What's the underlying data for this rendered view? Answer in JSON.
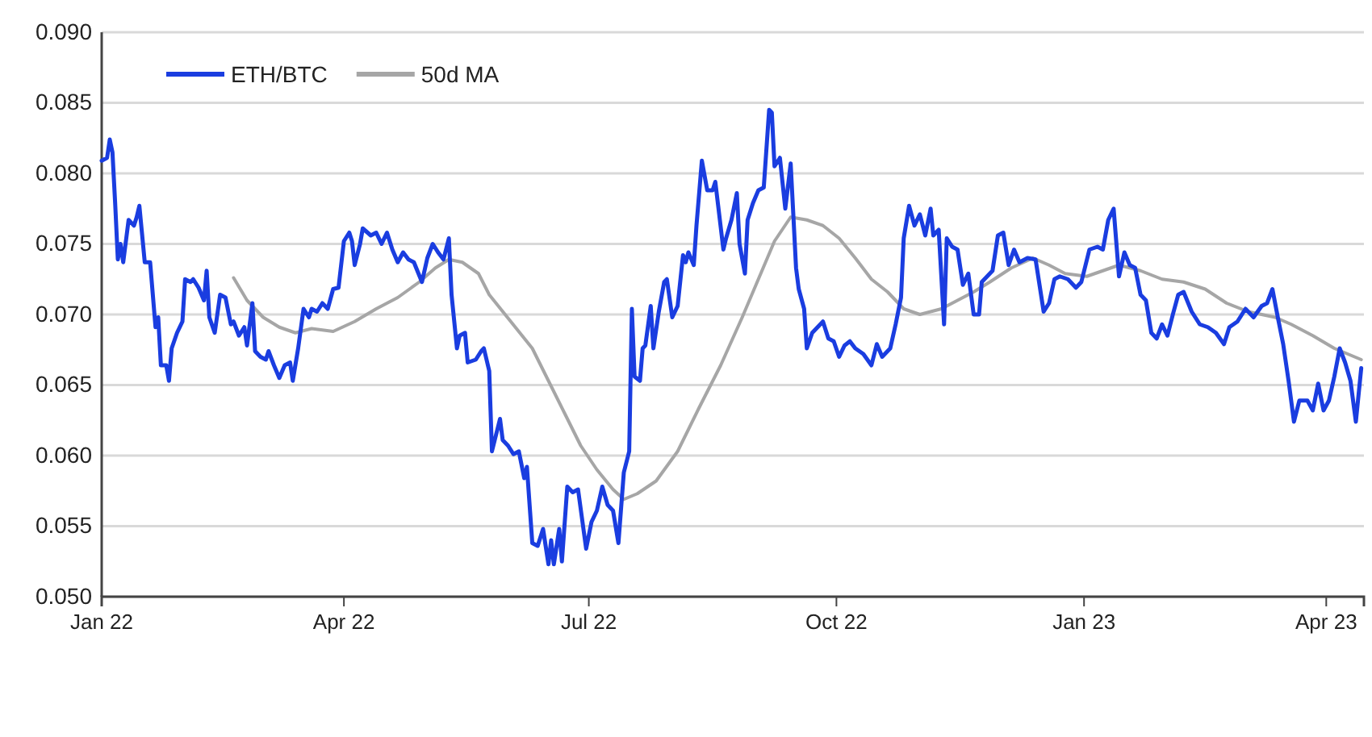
{
  "chart_data": {
    "type": "line",
    "xlim": [
      "2022-01-01",
      "2023-04-15"
    ],
    "xticks": [
      {
        "value": "2022-01-01",
        "label": "Jan 22"
      },
      {
        "value": "2022-04-01",
        "label": "Apr 22"
      },
      {
        "value": "2022-07-01",
        "label": "Jul 22"
      },
      {
        "value": "2022-10-01",
        "label": "Oct 22"
      },
      {
        "value": "2023-01-01",
        "label": "Jan 23"
      },
      {
        "value": "2023-04-01",
        "label": "Apr 23"
      }
    ],
    "ylim": [
      0.05,
      0.09
    ],
    "yticks": [
      {
        "value": 0.05,
        "label": "0.050"
      },
      {
        "value": 0.055,
        "label": "0.055"
      },
      {
        "value": 0.06,
        "label": "0.060"
      },
      {
        "value": 0.065,
        "label": "0.065"
      },
      {
        "value": 0.07,
        "label": "0.070"
      },
      {
        "value": 0.075,
        "label": "0.075"
      },
      {
        "value": 0.08,
        "label": "0.080"
      },
      {
        "value": 0.085,
        "label": "0.085"
      },
      {
        "value": 0.09,
        "label": "0.090"
      }
    ],
    "grid": "y",
    "legend": "top left",
    "series": [
      {
        "name": "ETH/BTC",
        "color": "#1a3de0",
        "x": [
          "2022-01-01",
          "2022-01-03",
          "2022-01-04",
          "2022-01-05",
          "2022-01-06",
          "2022-01-07",
          "2022-01-08",
          "2022-01-09",
          "2022-01-11",
          "2022-01-13",
          "2022-01-14",
          "2022-01-15",
          "2022-01-17",
          "2022-01-19",
          "2022-01-21",
          "2022-01-22",
          "2022-01-23",
          "2022-01-25",
          "2022-01-26",
          "2022-01-27",
          "2022-01-29",
          "2022-01-31",
          "2022-02-01",
          "2022-02-03",
          "2022-02-04",
          "2022-02-06",
          "2022-02-08",
          "2022-02-09",
          "2022-02-10",
          "2022-02-12",
          "2022-02-14",
          "2022-02-16",
          "2022-02-18",
          "2022-02-19",
          "2022-02-21",
          "2022-02-23",
          "2022-02-24",
          "2022-02-26",
          "2022-02-27",
          "2022-03-01",
          "2022-03-03",
          "2022-03-04",
          "2022-03-06",
          "2022-03-08",
          "2022-03-10",
          "2022-03-12",
          "2022-03-13",
          "2022-03-15",
          "2022-03-17",
          "2022-03-19",
          "2022-03-20",
          "2022-03-22",
          "2022-03-24",
          "2022-03-26",
          "2022-03-28",
          "2022-03-30",
          "2022-04-01",
          "2022-04-03",
          "2022-04-04",
          "2022-04-05",
          "2022-04-07",
          "2022-04-08",
          "2022-04-11",
          "2022-04-13",
          "2022-04-15",
          "2022-04-17",
          "2022-04-19",
          "2022-04-21",
          "2022-04-23",
          "2022-04-25",
          "2022-04-27",
          "2022-04-30",
          "2022-05-02",
          "2022-05-04",
          "2022-05-06",
          "2022-05-08",
          "2022-05-10",
          "2022-05-11",
          "2022-05-13",
          "2022-05-14",
          "2022-05-16",
          "2022-05-17",
          "2022-05-20",
          "2022-05-22",
          "2022-05-23",
          "2022-05-25",
          "2022-05-26",
          "2022-05-29",
          "2022-05-30",
          "2022-06-01",
          "2022-06-03",
          "2022-06-05",
          "2022-06-07",
          "2022-06-08",
          "2022-06-10",
          "2022-06-12",
          "2022-06-14",
          "2022-06-16",
          "2022-06-17",
          "2022-06-18",
          "2022-06-20",
          "2022-06-21",
          "2022-06-23",
          "2022-06-25",
          "2022-06-27",
          "2022-06-30",
          "2022-07-02",
          "2022-07-04",
          "2022-07-06",
          "2022-07-08",
          "2022-07-10",
          "2022-07-12",
          "2022-07-14",
          "2022-07-16",
          "2022-07-17",
          "2022-07-18",
          "2022-07-20",
          "2022-07-21",
          "2022-07-22",
          "2022-07-24",
          "2022-07-25",
          "2022-07-27",
          "2022-07-29",
          "2022-07-30",
          "2022-08-01",
          "2022-08-03",
          "2022-08-05",
          "2022-08-06",
          "2022-08-07",
          "2022-08-09",
          "2022-08-10",
          "2022-08-12",
          "2022-08-14",
          "2022-08-16",
          "2022-08-17",
          "2022-08-20",
          "2022-08-21",
          "2022-08-23",
          "2022-08-25",
          "2022-08-26",
          "2022-08-28",
          "2022-08-29",
          "2022-08-31",
          "2022-09-02",
          "2022-09-04",
          "2022-09-06",
          "2022-09-07",
          "2022-09-08",
          "2022-09-10",
          "2022-09-12",
          "2022-09-14",
          "2022-09-16",
          "2022-09-17",
          "2022-09-19",
          "2022-09-20",
          "2022-09-22",
          "2022-09-24",
          "2022-09-26",
          "2022-09-28",
          "2022-09-30",
          "2022-10-02",
          "2022-10-04",
          "2022-10-06",
          "2022-10-08",
          "2022-10-11",
          "2022-10-14",
          "2022-10-16",
          "2022-10-18",
          "2022-10-21",
          "2022-10-23",
          "2022-10-25",
          "2022-10-26",
          "2022-10-28",
          "2022-10-30",
          "2022-11-01",
          "2022-11-03",
          "2022-11-05",
          "2022-11-06",
          "2022-11-08",
          "2022-11-10",
          "2022-11-11",
          "2022-11-13",
          "2022-11-15",
          "2022-11-17",
          "2022-11-19",
          "2022-11-21",
          "2022-11-23",
          "2022-11-24",
          "2022-11-26",
          "2022-11-28",
          "2022-11-30",
          "2022-12-02",
          "2022-12-04",
          "2022-12-06",
          "2022-12-08",
          "2022-12-11",
          "2022-12-14",
          "2022-12-17",
          "2022-12-19",
          "2022-12-21",
          "2022-12-23",
          "2022-12-26",
          "2022-12-29",
          "2022-12-31",
          "2023-01-03",
          "2023-01-06",
          "2023-01-08",
          "2023-01-10",
          "2023-01-12",
          "2023-01-14",
          "2023-01-16",
          "2023-01-18",
          "2023-01-20",
          "2023-01-22",
          "2023-01-24",
          "2023-01-26",
          "2023-01-28",
          "2023-01-30",
          "2023-02-01",
          "2023-02-03",
          "2023-02-05",
          "2023-02-07",
          "2023-02-10",
          "2023-02-13",
          "2023-02-16",
          "2023-02-19",
          "2023-02-22",
          "2023-02-24",
          "2023-02-27",
          "2023-03-02",
          "2023-03-05",
          "2023-03-08",
          "2023-03-10",
          "2023-03-12",
          "2023-03-14",
          "2023-03-16",
          "2023-03-18",
          "2023-03-20",
          "2023-03-22",
          "2023-03-25",
          "2023-03-27",
          "2023-03-29",
          "2023-03-31",
          "2023-04-02",
          "2023-04-04",
          "2023-04-06",
          "2023-04-08",
          "2023-04-10",
          "2023-04-12",
          "2023-04-14"
        ],
        "values": [
          0.0809,
          0.0811,
          0.0824,
          0.0815,
          0.0779,
          0.0739,
          0.075,
          0.0737,
          0.0767,
          0.0763,
          0.0769,
          0.0777,
          0.0737,
          0.0737,
          0.0691,
          0.0698,
          0.0664,
          0.0664,
          0.0653,
          0.0676,
          0.0687,
          0.0695,
          0.0725,
          0.0723,
          0.0725,
          0.0719,
          0.071,
          0.0731,
          0.0698,
          0.0687,
          0.0714,
          0.0712,
          0.0693,
          0.0695,
          0.0685,
          0.0691,
          0.0678,
          0.0708,
          0.0674,
          0.067,
          0.0668,
          0.0674,
          0.0664,
          0.0655,
          0.0664,
          0.0666,
          0.0653,
          0.0676,
          0.0704,
          0.0698,
          0.0704,
          0.0702,
          0.0708,
          0.0704,
          0.0718,
          0.0719,
          0.0752,
          0.0758,
          0.0752,
          0.0735,
          0.075,
          0.0761,
          0.0756,
          0.0758,
          0.075,
          0.0758,
          0.0746,
          0.0737,
          0.0744,
          0.0739,
          0.0737,
          0.0723,
          0.074,
          0.075,
          0.0744,
          0.0739,
          0.0754,
          0.0714,
          0.0676,
          0.0685,
          0.0687,
          0.0666,
          0.0668,
          0.0674,
          0.0676,
          0.066,
          0.0603,
          0.0626,
          0.0611,
          0.0607,
          0.0601,
          0.0603,
          0.0584,
          0.0592,
          0.0538,
          0.0536,
          0.0548,
          0.0523,
          0.054,
          0.0523,
          0.0548,
          0.0525,
          0.0578,
          0.0574,
          0.0576,
          0.0534,
          0.0553,
          0.0561,
          0.0578,
          0.0565,
          0.0561,
          0.0538,
          0.0588,
          0.0603,
          0.0704,
          0.0656,
          0.0653,
          0.0676,
          0.0678,
          0.0706,
          0.0676,
          0.0702,
          0.0723,
          0.0725,
          0.0698,
          0.0706,
          0.0742,
          0.0737,
          0.0744,
          0.0735,
          0.0763,
          0.0809,
          0.0788,
          0.0788,
          0.0794,
          0.0746,
          0.0754,
          0.0767,
          0.0786,
          0.075,
          0.0729,
          0.0767,
          0.0779,
          0.0788,
          0.079,
          0.0845,
          0.0843,
          0.0805,
          0.0811,
          0.0775,
          0.0807,
          0.0733,
          0.0718,
          0.0704,
          0.0676,
          0.0687,
          0.0691,
          0.0695,
          0.0683,
          0.0681,
          0.067,
          0.0678,
          0.0681,
          0.0676,
          0.0672,
          0.0664,
          0.0679,
          0.067,
          0.0676,
          0.0693,
          0.0712,
          0.0754,
          0.0777,
          0.0763,
          0.0771,
          0.0756,
          0.0775,
          0.0756,
          0.076,
          0.0693,
          0.0754,
          0.0748,
          0.0746,
          0.0721,
          0.0729,
          0.07,
          0.07,
          0.0723,
          0.0727,
          0.0731,
          0.0756,
          0.0758,
          0.0735,
          0.0746,
          0.0737,
          0.074,
          0.0739,
          0.0702,
          0.0708,
          0.0725,
          0.0727,
          0.0725,
          0.0719,
          0.0723,
          0.0746,
          0.0748,
          0.0746,
          0.0767,
          0.0775,
          0.0727,
          0.0744,
          0.0735,
          0.0733,
          0.0714,
          0.071,
          0.0687,
          0.0683,
          0.0693,
          0.0685,
          0.07,
          0.0714,
          0.0716,
          0.0702,
          0.0693,
          0.0691,
          0.0687,
          0.0679,
          0.0691,
          0.0695,
          0.0704,
          0.0698,
          0.0706,
          0.0708,
          0.0718,
          0.0698,
          0.0679,
          0.0653,
          0.0624,
          0.0639,
          0.0639,
          0.0632,
          0.0651,
          0.0632,
          0.0639,
          0.0656,
          0.0676,
          0.0666,
          0.0653,
          0.0624,
          0.0662
        ]
      },
      {
        "name": "50d MA",
        "color": "#a6a6a6",
        "x": [
          "2022-02-19",
          "2022-02-24",
          "2022-03-02",
          "2022-03-08",
          "2022-03-14",
          "2022-03-20",
          "2022-03-28",
          "2022-04-05",
          "2022-04-13",
          "2022-04-21",
          "2022-04-29",
          "2022-05-05",
          "2022-05-10",
          "2022-05-15",
          "2022-05-21",
          "2022-05-25",
          "2022-06-02",
          "2022-06-10",
          "2022-06-16",
          "2022-06-22",
          "2022-06-28",
          "2022-07-04",
          "2022-07-10",
          "2022-07-14",
          "2022-07-19",
          "2022-07-26",
          "2022-08-03",
          "2022-08-11",
          "2022-08-19",
          "2022-08-27",
          "2022-09-02",
          "2022-09-08",
          "2022-09-14",
          "2022-09-20",
          "2022-09-26",
          "2022-10-02",
          "2022-10-08",
          "2022-10-14",
          "2022-10-20",
          "2022-10-26",
          "2022-11-01",
          "2022-11-09",
          "2022-11-15",
          "2022-11-21",
          "2022-11-27",
          "2022-12-05",
          "2022-12-13",
          "2022-12-19",
          "2022-12-25",
          "2023-01-02",
          "2023-01-08",
          "2023-01-14",
          "2023-01-22",
          "2023-01-30",
          "2023-02-07",
          "2023-02-15",
          "2023-02-23",
          "2023-03-03",
          "2023-03-13",
          "2023-03-19",
          "2023-03-27",
          "2023-04-04",
          "2023-04-14"
        ],
        "values": [
          0.0726,
          0.071,
          0.0698,
          0.0691,
          0.0687,
          0.069,
          0.0688,
          0.0695,
          0.0704,
          0.0712,
          0.0723,
          0.0733,
          0.0739,
          0.0737,
          0.0729,
          0.0714,
          0.0695,
          0.0676,
          0.0653,
          0.063,
          0.0607,
          0.059,
          0.0576,
          0.0569,
          0.0573,
          0.0582,
          0.0603,
          0.0634,
          0.0664,
          0.0698,
          0.0725,
          0.0752,
          0.0769,
          0.0767,
          0.0763,
          0.0754,
          0.074,
          0.0725,
          0.0716,
          0.0704,
          0.07,
          0.0704,
          0.071,
          0.0716,
          0.0723,
          0.0733,
          0.074,
          0.0735,
          0.0729,
          0.0727,
          0.0731,
          0.0735,
          0.0731,
          0.0725,
          0.0723,
          0.0718,
          0.0708,
          0.0702,
          0.0698,
          0.0693,
          0.0685,
          0.0676,
          0.0668
        ]
      }
    ]
  }
}
